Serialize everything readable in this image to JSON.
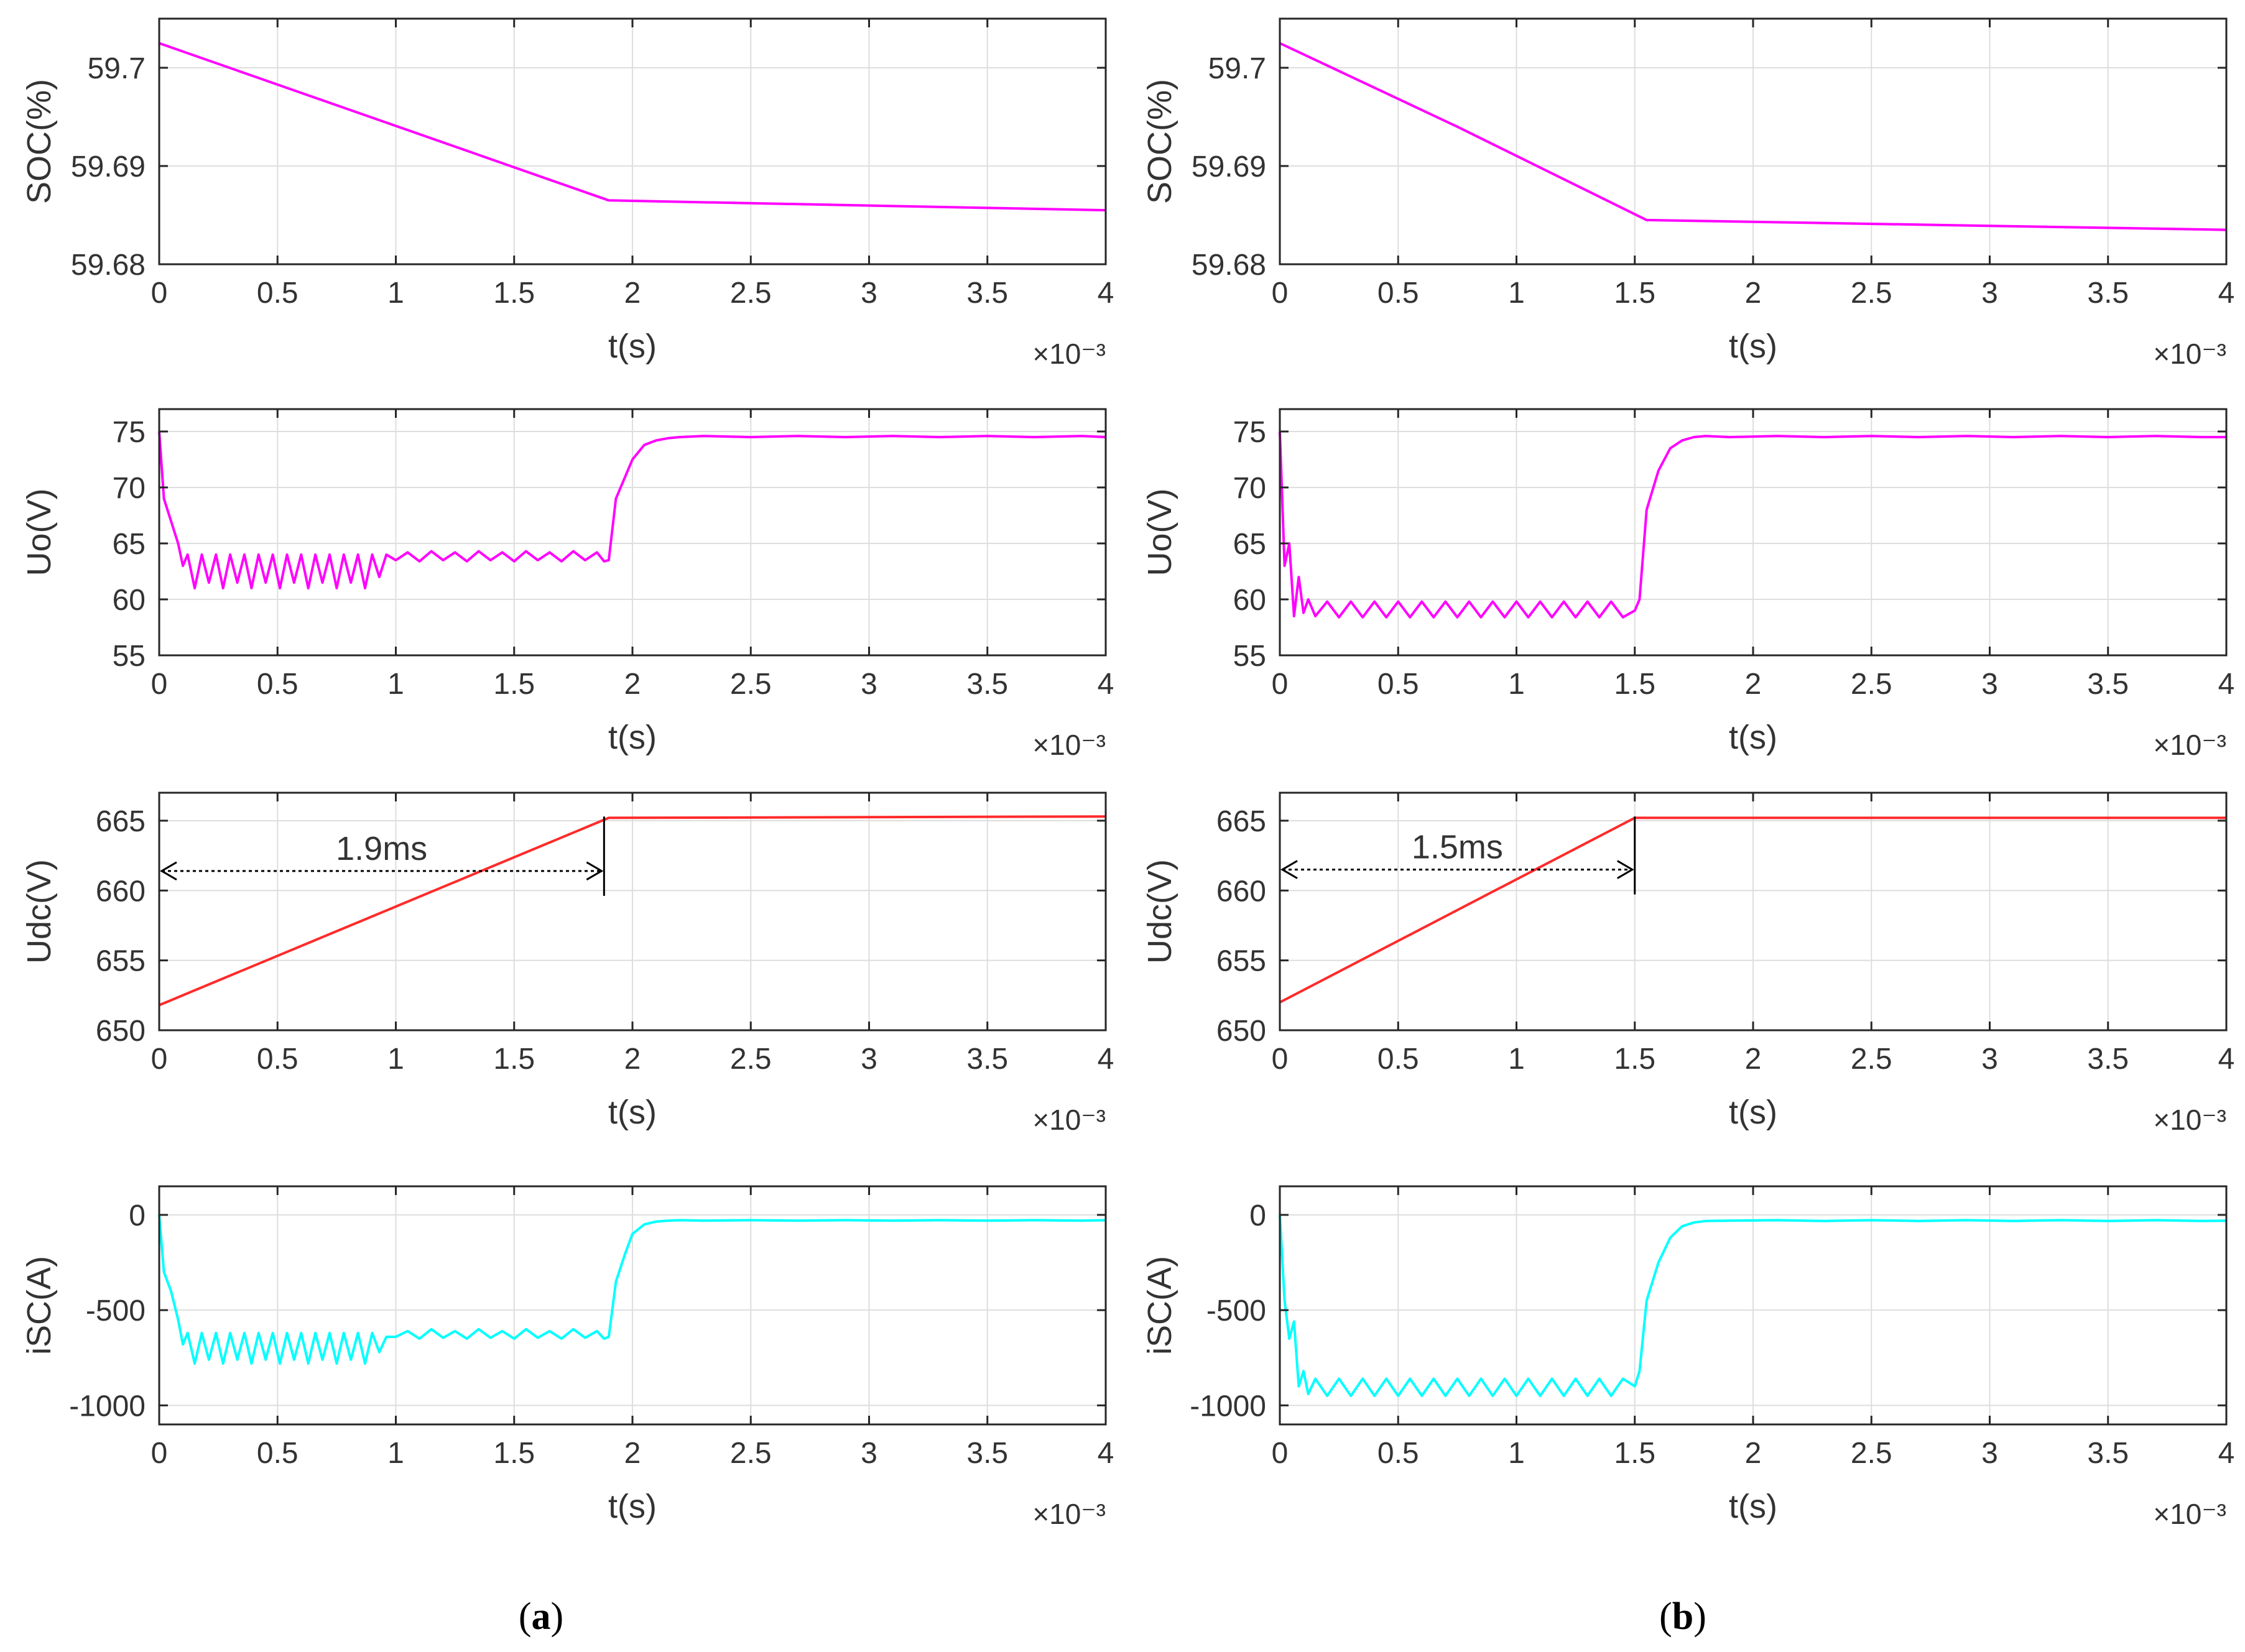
{
  "figure": {
    "panel_labels": [
      {
        "open": "(",
        "letter": "a",
        "close": ")"
      },
      {
        "open": "(",
        "letter": "b",
        "close": ")"
      }
    ]
  },
  "colors": {
    "soc": "#ff00ff",
    "uo": "#ff00ff",
    "udc": "#ff2a2a",
    "isc": "#00ffff",
    "grid": "#dedede",
    "axes": "#262626"
  },
  "chart_data": [
    {
      "panel": "a",
      "type": "line",
      "id": "a-soc",
      "ylabel": "SOC(%)",
      "xlabel": "t(s)",
      "xscale": "×10⁻³",
      "xlim": [
        0,
        4
      ],
      "ylim": [
        59.68,
        59.705
      ],
      "xticks": [
        "0",
        "0.5",
        "1",
        "1.5",
        "2",
        "2.5",
        "3",
        "3.5",
        "4"
      ],
      "yticks": [
        {
          "v": 59.68,
          "label": "59.68"
        },
        {
          "v": 59.69,
          "label": "59.69"
        },
        {
          "v": 59.7,
          "label": "59.7"
        }
      ],
      "series": [
        {
          "name": "SOC",
          "color": "soc",
          "x": [
            0,
            0.95,
            1.9,
            4
          ],
          "y": [
            59.7025,
            59.6945,
            59.6865,
            59.6855
          ]
        }
      ]
    },
    {
      "panel": "a",
      "type": "line",
      "id": "a-uo",
      "ylabel": "Uo(V)",
      "xlabel": "t(s)",
      "xscale": "×10⁻³",
      "xlim": [
        0,
        4
      ],
      "ylim": [
        55,
        77
      ],
      "xticks": [
        "0",
        "0.5",
        "1",
        "1.5",
        "2",
        "2.5",
        "3",
        "3.5",
        "4"
      ],
      "yticks": [
        {
          "v": 55,
          "label": "55"
        },
        {
          "v": 60,
          "label": "60"
        },
        {
          "v": 65,
          "label": "65"
        },
        {
          "v": 70,
          "label": "70"
        },
        {
          "v": 75,
          "label": "75"
        }
      ],
      "series": [
        {
          "name": "Uo",
          "color": "uo",
          "x": [
            0,
            0.02,
            0.05,
            0.08,
            0.1,
            0.12,
            0.15,
            0.18,
            0.21,
            0.24,
            0.27,
            0.3,
            0.33,
            0.36,
            0.39,
            0.42,
            0.45,
            0.48,
            0.51,
            0.54,
            0.57,
            0.6,
            0.63,
            0.66,
            0.69,
            0.72,
            0.75,
            0.78,
            0.81,
            0.84,
            0.87,
            0.9,
            0.93,
            0.96,
            1.0,
            1.05,
            1.1,
            1.15,
            1.2,
            1.25,
            1.3,
            1.35,
            1.4,
            1.45,
            1.5,
            1.55,
            1.6,
            1.65,
            1.7,
            1.75,
            1.8,
            1.85,
            1.88,
            1.9,
            1.93,
            1.97,
            2.0,
            2.05,
            2.1,
            2.15,
            2.2,
            2.3,
            2.5,
            2.7,
            2.9,
            3.1,
            3.3,
            3.5,
            3.7,
            3.9,
            4.0
          ],
          "y": [
            75,
            69,
            67,
            65,
            63,
            64,
            61,
            64,
            61.5,
            64,
            61,
            64,
            61.5,
            64,
            61,
            64,
            61.5,
            64,
            61,
            64,
            61.5,
            64,
            61,
            64,
            61.5,
            64,
            61,
            64,
            61.5,
            64,
            61,
            64,
            62,
            64,
            63.5,
            64.2,
            63.4,
            64.3,
            63.5,
            64.2,
            63.4,
            64.3,
            63.5,
            64.2,
            63.4,
            64.3,
            63.5,
            64.2,
            63.4,
            64.3,
            63.5,
            64.2,
            63.4,
            63.5,
            69,
            71,
            72.5,
            73.8,
            74.2,
            74.4,
            74.5,
            74.6,
            74.5,
            74.6,
            74.5,
            74.6,
            74.5,
            74.6,
            74.5,
            74.6,
            74.5
          ]
        }
      ]
    },
    {
      "panel": "a",
      "type": "line",
      "id": "a-udc",
      "ylabel": "Udc(V)",
      "xlabel": "t(s)",
      "xscale": "×10⁻³",
      "xlim": [
        0,
        4
      ],
      "ylim": [
        650,
        667
      ],
      "xticks": [
        "0",
        "0.5",
        "1",
        "1.5",
        "2",
        "2.5",
        "3",
        "3.5",
        "4"
      ],
      "yticks": [
        {
          "v": 650,
          "label": "650"
        },
        {
          "v": 655,
          "label": "655"
        },
        {
          "v": 660,
          "label": "660"
        },
        {
          "v": 665,
          "label": "665"
        }
      ],
      "series": [
        {
          "name": "Udc",
          "color": "udc",
          "x": [
            0,
            1.9,
            4
          ],
          "y": [
            651.8,
            665.2,
            665.3
          ]
        }
      ],
      "annotation": {
        "text": "1.9ms",
        "x_start": 0,
        "x_end": 1.88,
        "y": 661.4,
        "marker_x": 1.88
      }
    },
    {
      "panel": "a",
      "type": "line",
      "id": "a-isc",
      "ylabel": "iSC(A)",
      "xlabel": "t(s)",
      "xscale": "×10⁻³",
      "xlim": [
        0,
        4
      ],
      "ylim": [
        -1100,
        150
      ],
      "xticks": [
        "0",
        "0.5",
        "1",
        "1.5",
        "2",
        "2.5",
        "3",
        "3.5",
        "4"
      ],
      "yticks": [
        {
          "v": -1000,
          "label": "-1000"
        },
        {
          "v": -500,
          "label": "-500"
        },
        {
          "v": 0,
          "label": "0"
        }
      ],
      "series": [
        {
          "name": "iSC",
          "color": "isc",
          "x": [
            0,
            0.02,
            0.05,
            0.08,
            0.1,
            0.12,
            0.15,
            0.18,
            0.21,
            0.24,
            0.27,
            0.3,
            0.33,
            0.36,
            0.39,
            0.42,
            0.45,
            0.48,
            0.51,
            0.54,
            0.57,
            0.6,
            0.63,
            0.66,
            0.69,
            0.72,
            0.75,
            0.78,
            0.81,
            0.84,
            0.87,
            0.9,
            0.93,
            0.96,
            1.0,
            1.05,
            1.1,
            1.15,
            1.2,
            1.25,
            1.3,
            1.35,
            1.4,
            1.45,
            1.5,
            1.55,
            1.6,
            1.65,
            1.7,
            1.75,
            1.8,
            1.85,
            1.88,
            1.9,
            1.93,
            1.97,
            2.0,
            2.05,
            2.1,
            2.15,
            2.2,
            2.3,
            2.5,
            2.7,
            2.9,
            3.1,
            3.3,
            3.5,
            3.7,
            3.9,
            4.0
          ],
          "y": [
            0,
            -300,
            -400,
            -550,
            -680,
            -620,
            -780,
            -620,
            -760,
            -620,
            -780,
            -620,
            -760,
            -620,
            -780,
            -620,
            -760,
            -620,
            -780,
            -620,
            -760,
            -620,
            -780,
            -620,
            -760,
            -620,
            -780,
            -620,
            -760,
            -620,
            -780,
            -620,
            -720,
            -640,
            -640,
            -610,
            -650,
            -600,
            -645,
            -610,
            -650,
            -600,
            -645,
            -610,
            -650,
            -600,
            -645,
            -610,
            -650,
            -600,
            -645,
            -610,
            -650,
            -640,
            -350,
            -200,
            -100,
            -50,
            -35,
            -30,
            -28,
            -30,
            -28,
            -30,
            -28,
            -30,
            -28,
            -30,
            -28,
            -30,
            -28
          ]
        }
      ]
    },
    {
      "panel": "b",
      "type": "line",
      "id": "b-soc",
      "ylabel": "SOC(%)",
      "xlabel": "t(s)",
      "xscale": "×10⁻³",
      "xlim": [
        0,
        4
      ],
      "ylim": [
        59.68,
        59.705
      ],
      "xticks": [
        "0",
        "0.5",
        "1",
        "1.5",
        "2",
        "2.5",
        "3",
        "3.5",
        "4"
      ],
      "yticks": [
        {
          "v": 59.68,
          "label": "59.68"
        },
        {
          "v": 59.69,
          "label": "59.69"
        },
        {
          "v": 59.7,
          "label": "59.7"
        }
      ],
      "series": [
        {
          "name": "SOC",
          "color": "soc",
          "x": [
            0,
            0.75,
            1.55,
            4
          ],
          "y": [
            59.7025,
            59.694,
            59.6845,
            59.6835
          ]
        }
      ]
    },
    {
      "panel": "b",
      "type": "line",
      "id": "b-uo",
      "ylabel": "Uo(V)",
      "xlabel": "t(s)",
      "xscale": "×10⁻³",
      "xlim": [
        0,
        4
      ],
      "ylim": [
        55,
        77
      ],
      "xticks": [
        "0",
        "0.5",
        "1",
        "1.5",
        "2",
        "2.5",
        "3",
        "3.5",
        "4"
      ],
      "yticks": [
        {
          "v": 55,
          "label": "55"
        },
        {
          "v": 60,
          "label": "60"
        },
        {
          "v": 65,
          "label": "65"
        },
        {
          "v": 70,
          "label": "70"
        },
        {
          "v": 75,
          "label": "75"
        }
      ],
      "series": [
        {
          "name": "Uo",
          "color": "uo",
          "x": [
            0,
            0.02,
            0.04,
            0.06,
            0.08,
            0.1,
            0.12,
            0.15,
            0.2,
            0.25,
            0.3,
            0.35,
            0.4,
            0.45,
            0.5,
            0.55,
            0.6,
            0.65,
            0.7,
            0.75,
            0.8,
            0.85,
            0.9,
            0.95,
            1.0,
            1.05,
            1.1,
            1.15,
            1.2,
            1.25,
            1.3,
            1.35,
            1.4,
            1.45,
            1.5,
            1.52,
            1.55,
            1.6,
            1.65,
            1.7,
            1.75,
            1.8,
            1.9,
            2.1,
            2.3,
            2.5,
            2.7,
            2.9,
            3.1,
            3.3,
            3.5,
            3.7,
            3.9,
            4.0
          ],
          "y": [
            75,
            63,
            65,
            58.5,
            62,
            58.8,
            60,
            58.5,
            59.8,
            58.4,
            59.8,
            58.4,
            59.8,
            58.4,
            59.8,
            58.4,
            59.8,
            58.4,
            59.8,
            58.4,
            59.8,
            58.4,
            59.8,
            58.4,
            59.8,
            58.4,
            59.8,
            58.4,
            59.8,
            58.4,
            59.8,
            58.4,
            59.8,
            58.4,
            59,
            60,
            68,
            71.5,
            73.5,
            74.2,
            74.5,
            74.6,
            74.5,
            74.6,
            74.5,
            74.6,
            74.5,
            74.6,
            74.5,
            74.6,
            74.5,
            74.6,
            74.5,
            74.5
          ]
        }
      ]
    },
    {
      "panel": "b",
      "type": "line",
      "id": "b-udc",
      "ylabel": "Udc(V)",
      "xlabel": "t(s)",
      "xscale": "×10⁻³",
      "xlim": [
        0,
        4
      ],
      "ylim": [
        650,
        667
      ],
      "xticks": [
        "0",
        "0.5",
        "1",
        "1.5",
        "2",
        "2.5",
        "3",
        "3.5",
        "4"
      ],
      "yticks": [
        {
          "v": 650,
          "label": "650"
        },
        {
          "v": 655,
          "label": "655"
        },
        {
          "v": 660,
          "label": "660"
        },
        {
          "v": 665,
          "label": "665"
        }
      ],
      "series": [
        {
          "name": "Udc",
          "color": "udc",
          "x": [
            0,
            1.5,
            4
          ],
          "y": [
            652,
            665.2,
            665.2
          ]
        }
      ],
      "annotation": {
        "text": "1.5ms",
        "x_start": 0,
        "x_end": 1.5,
        "y": 661.5,
        "marker_x": 1.5
      }
    },
    {
      "panel": "b",
      "type": "line",
      "id": "b-isc",
      "ylabel": "iSC(A)",
      "xlabel": "t(s)",
      "xscale": "×10⁻³",
      "xlim": [
        0,
        4
      ],
      "ylim": [
        -1100,
        150
      ],
      "xticks": [
        "0",
        "0.5",
        "1",
        "1.5",
        "2",
        "2.5",
        "3",
        "3.5",
        "4"
      ],
      "yticks": [
        {
          "v": -1000,
          "label": "-1000"
        },
        {
          "v": -500,
          "label": "-500"
        },
        {
          "v": 0,
          "label": "0"
        }
      ],
      "series": [
        {
          "name": "iSC",
          "color": "isc",
          "x": [
            0,
            0.02,
            0.04,
            0.06,
            0.08,
            0.1,
            0.12,
            0.15,
            0.2,
            0.25,
            0.3,
            0.35,
            0.4,
            0.45,
            0.5,
            0.55,
            0.6,
            0.65,
            0.7,
            0.75,
            0.8,
            0.85,
            0.9,
            0.95,
            1.0,
            1.05,
            1.1,
            1.15,
            1.2,
            1.25,
            1.3,
            1.35,
            1.4,
            1.45,
            1.5,
            1.52,
            1.55,
            1.6,
            1.65,
            1.7,
            1.75,
            1.8,
            1.9,
            2.1,
            2.3,
            2.5,
            2.7,
            2.9,
            3.1,
            3.3,
            3.5,
            3.7,
            3.9,
            4.0
          ],
          "y": [
            0,
            -450,
            -650,
            -560,
            -900,
            -820,
            -940,
            -860,
            -950,
            -860,
            -950,
            -860,
            -950,
            -860,
            -950,
            -860,
            -950,
            -860,
            -950,
            -860,
            -950,
            -860,
            -950,
            -860,
            -950,
            -860,
            -950,
            -860,
            -950,
            -860,
            -950,
            -860,
            -950,
            -860,
            -900,
            -820,
            -450,
            -250,
            -120,
            -60,
            -40,
            -32,
            -30,
            -28,
            -32,
            -28,
            -32,
            -28,
            -32,
            -28,
            -32,
            -28,
            -32,
            -30
          ]
        }
      ]
    }
  ]
}
